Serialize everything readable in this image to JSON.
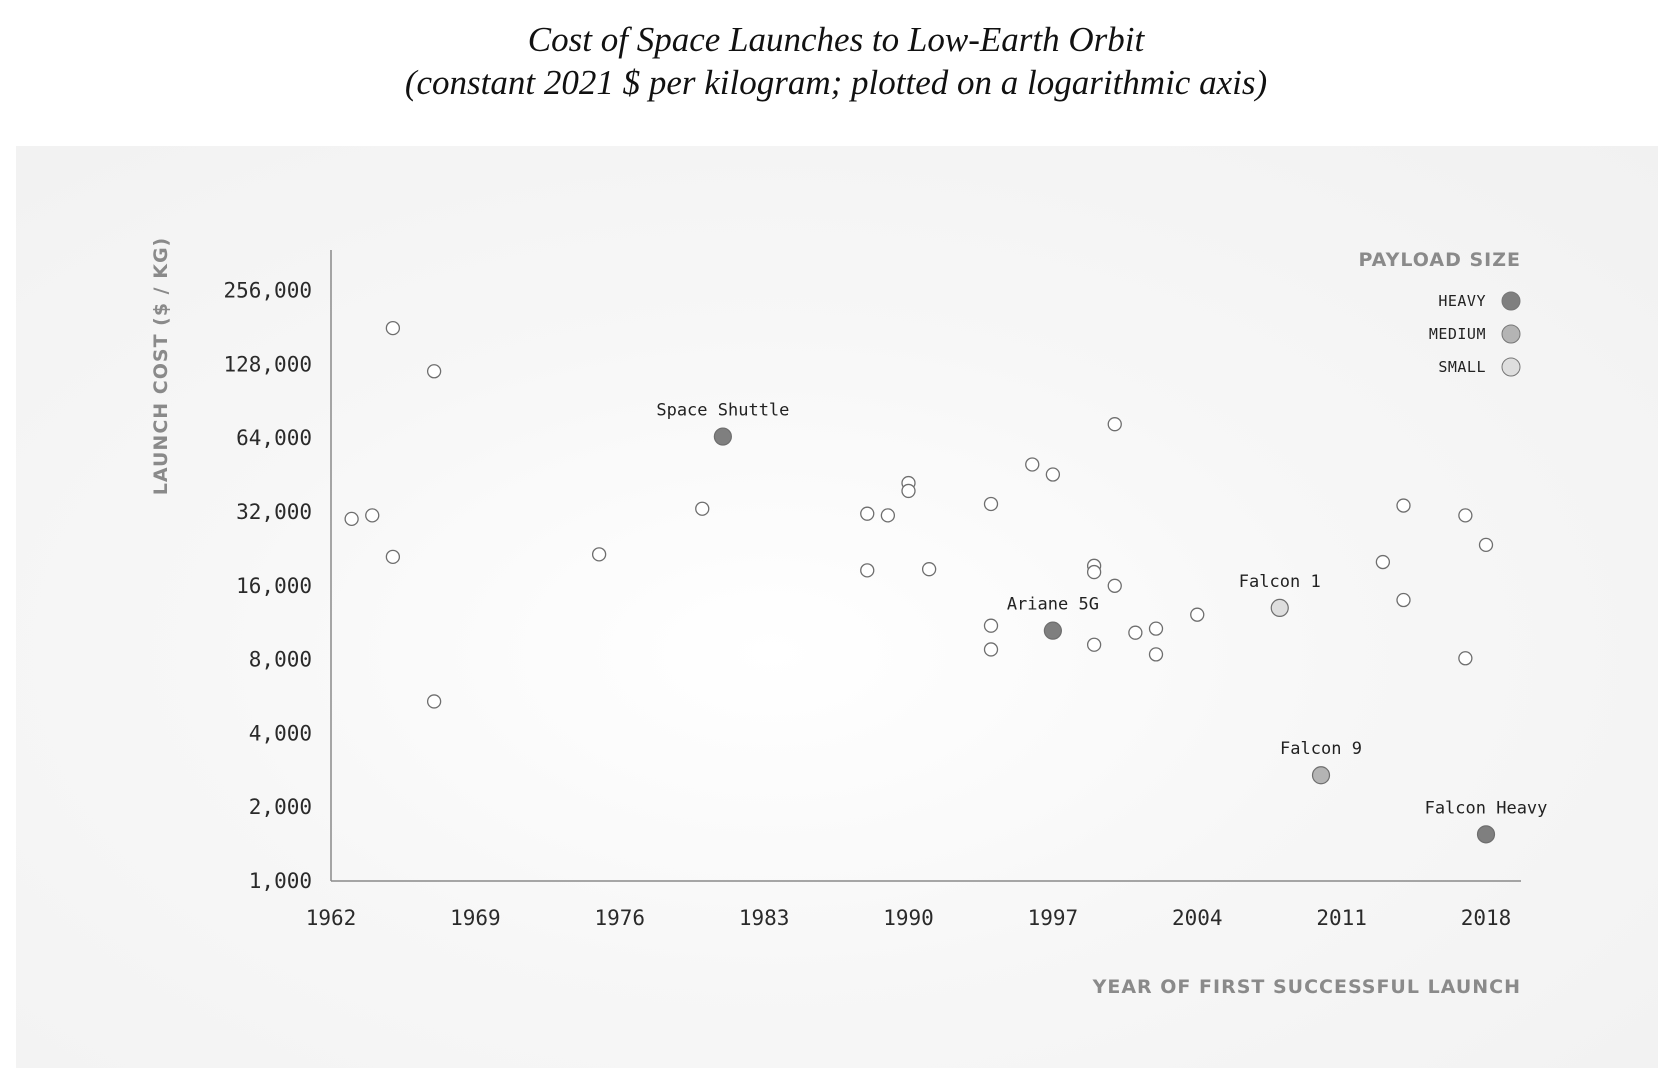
{
  "title_lines": [
    "Cost of Space Launches to Low-Earth Orbit",
    "(constant 2021 $ per kilogram; plotted on a logarithmic axis)"
  ],
  "chart_data": {
    "type": "scatter",
    "title": "Cost of Space Launches to Low-Earth Orbit",
    "subtitle": "(constant 2021 $ per kilogram; plotted on a logarithmic axis)",
    "xlabel": "YEAR OF FIRST SUCCESSFUL LAUNCH",
    "ylabel": "LAUNCH COST ($ / KG)",
    "x_scale": "linear",
    "y_scale": "log2",
    "xlim": [
      1962,
      2020
    ],
    "ylim": [
      1000,
      330000
    ],
    "x_ticks": [
      1962,
      1969,
      1976,
      1983,
      1990,
      1997,
      2004,
      2011,
      2018
    ],
    "y_ticks": [
      1000,
      2000,
      4000,
      8000,
      16000,
      32000,
      64000,
      128000,
      256000
    ],
    "y_tick_labels": [
      "1,000",
      "2,000",
      "4,000",
      "8,000",
      "16,000",
      "32,000",
      "64,000",
      "128,000",
      "256,000"
    ],
    "grid": false,
    "legend": {
      "title": "PAYLOAD SIZE",
      "position": "top-right",
      "entries": [
        {
          "label": "HEAVY",
          "color": "#7f7f7f"
        },
        {
          "label": "MEDIUM",
          "color": "#b4b4b4"
        },
        {
          "label": "SMALL",
          "color": "#dedede"
        }
      ]
    },
    "highlighted": [
      {
        "name": "Space Shuttle",
        "x": 1981,
        "y": 65000,
        "size": "HEAVY"
      },
      {
        "name": "Ariane 5G",
        "x": 1997,
        "y": 10500,
        "size": "HEAVY"
      },
      {
        "name": "Falcon 1",
        "x": 2008,
        "y": 13000,
        "size": "SMALL"
      },
      {
        "name": "Falcon 9",
        "x": 2010,
        "y": 2700,
        "size": "MEDIUM"
      },
      {
        "name": "Falcon Heavy",
        "x": 2018,
        "y": 1550,
        "size": "HEAVY"
      }
    ],
    "other_points": [
      {
        "x": 1963,
        "y": 30000
      },
      {
        "x": 1964,
        "y": 31000
      },
      {
        "x": 1965,
        "y": 180000
      },
      {
        "x": 1965,
        "y": 21000
      },
      {
        "x": 1967,
        "y": 120000
      },
      {
        "x": 1967,
        "y": 5400
      },
      {
        "x": 1975,
        "y": 21500
      },
      {
        "x": 1980,
        "y": 33000
      },
      {
        "x": 1988,
        "y": 31500
      },
      {
        "x": 1988,
        "y": 18500
      },
      {
        "x": 1989,
        "y": 31000
      },
      {
        "x": 1990,
        "y": 42000
      },
      {
        "x": 1990,
        "y": 39000
      },
      {
        "x": 1991,
        "y": 18700
      },
      {
        "x": 1994,
        "y": 34500
      },
      {
        "x": 1994,
        "y": 11000
      },
      {
        "x": 1994,
        "y": 8800
      },
      {
        "x": 1996,
        "y": 50000
      },
      {
        "x": 1997,
        "y": 45500
      },
      {
        "x": 1999,
        "y": 19300
      },
      {
        "x": 1999,
        "y": 18200
      },
      {
        "x": 1999,
        "y": 9200
      },
      {
        "x": 2000,
        "y": 73000
      },
      {
        "x": 2000,
        "y": 16000
      },
      {
        "x": 2001,
        "y": 10300
      },
      {
        "x": 2002,
        "y": 10700
      },
      {
        "x": 2002,
        "y": 8400
      },
      {
        "x": 2004,
        "y": 12200
      },
      {
        "x": 2013,
        "y": 20000
      },
      {
        "x": 2014,
        "y": 34000
      },
      {
        "x": 2014,
        "y": 14000
      },
      {
        "x": 2017,
        "y": 31000
      },
      {
        "x": 2017,
        "y": 8100
      },
      {
        "x": 2018,
        "y": 23500
      }
    ]
  }
}
